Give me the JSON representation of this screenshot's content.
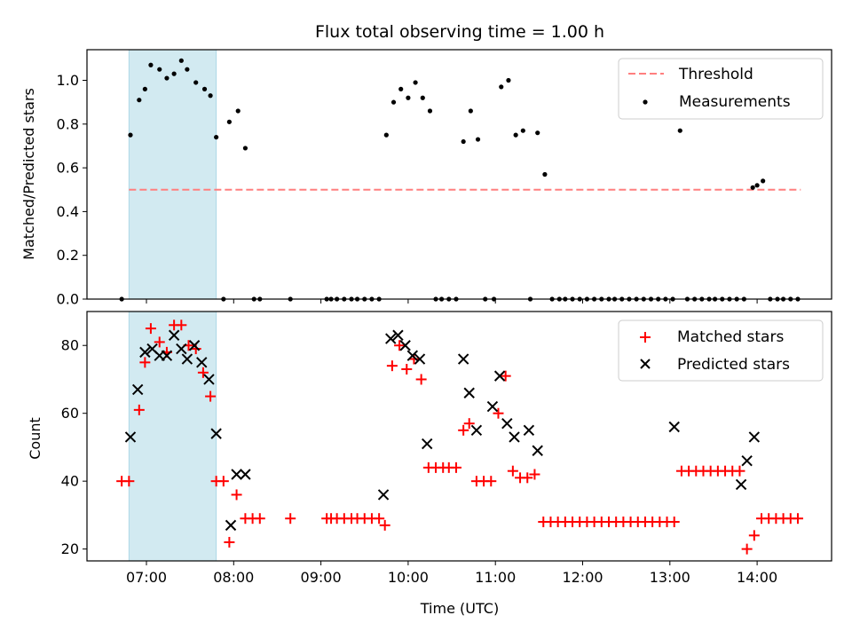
{
  "chart_data": [
    {
      "type": "scatter",
      "title": "Flux total observing time = 1.00 h",
      "xlabel": "",
      "ylabel": "Matched/Predicted stars",
      "ylim": [
        0,
        1.14
      ],
      "yticks": [
        0.0,
        0.2,
        0.4,
        0.6,
        0.8,
        1.0
      ],
      "ytick_labels": [
        "0.0",
        "0.2",
        "0.4",
        "0.6",
        "0.8",
        "1.0"
      ],
      "legend_placement": "top-right",
      "legend": [
        "Threshold",
        "Measurements"
      ],
      "highlight_span": {
        "start": "06:48",
        "end": "07:48",
        "color": "#add8e6"
      },
      "threshold": {
        "name": "Threshold",
        "value": 0.5,
        "x_start": "06:48",
        "x_end": "14:30",
        "color": "#ff7f7f"
      },
      "series": [
        {
          "name": "Measurements",
          "color": "#000000",
          "points": [
            [
              "06:43",
              0
            ],
            [
              "06:49",
              0.75
            ],
            [
              "06:55",
              0.91
            ],
            [
              "06:59",
              0.96
            ],
            [
              "07:03",
              1.07
            ],
            [
              "07:09",
              1.05
            ],
            [
              "07:14",
              1.01
            ],
            [
              "07:19",
              1.03
            ],
            [
              "07:24",
              1.09
            ],
            [
              "07:28",
              1.05
            ],
            [
              "07:34",
              0.99
            ],
            [
              "07:40",
              0.96
            ],
            [
              "07:44",
              0.93
            ],
            [
              "07:48",
              0.74
            ],
            [
              "07:53",
              0
            ],
            [
              "07:57",
              0.81
            ],
            [
              "08:03",
              0.86
            ],
            [
              "08:08",
              0.69
            ],
            [
              "08:14",
              0
            ],
            [
              "08:18",
              0
            ],
            [
              "08:39",
              0
            ],
            [
              "09:04",
              0
            ],
            [
              "09:07",
              0
            ],
            [
              "09:11",
              0
            ],
            [
              "09:16",
              0
            ],
            [
              "09:21",
              0
            ],
            [
              "09:25",
              0
            ],
            [
              "09:30",
              0
            ],
            [
              "09:35",
              0
            ],
            [
              "09:40",
              0
            ],
            [
              "09:45",
              0.75
            ],
            [
              "09:50",
              0.9
            ],
            [
              "09:55",
              0.96
            ],
            [
              "10:00",
              0.92
            ],
            [
              "10:05",
              0.99
            ],
            [
              "10:10",
              0.92
            ],
            [
              "10:15",
              0.86
            ],
            [
              "10:19",
              0
            ],
            [
              "10:23",
              0
            ],
            [
              "10:28",
              0
            ],
            [
              "10:33",
              0
            ],
            [
              "10:38",
              0.72
            ],
            [
              "10:43",
              0.86
            ],
            [
              "10:48",
              0.73
            ],
            [
              "10:53",
              0
            ],
            [
              "10:59",
              0
            ],
            [
              "11:04",
              0.97
            ],
            [
              "11:09",
              1.0
            ],
            [
              "11:14",
              0.75
            ],
            [
              "11:19",
              0.77
            ],
            [
              "11:24",
              0
            ],
            [
              "11:29",
              0.76
            ],
            [
              "11:34",
              0.57
            ],
            [
              "11:39",
              0
            ],
            [
              "11:44",
              0
            ],
            [
              "11:48",
              0
            ],
            [
              "11:53",
              0
            ],
            [
              "11:58",
              0
            ],
            [
              "12:03",
              0
            ],
            [
              "12:08",
              0
            ],
            [
              "12:13",
              0
            ],
            [
              "12:18",
              0
            ],
            [
              "12:22",
              0
            ],
            [
              "12:27",
              0
            ],
            [
              "12:32",
              0
            ],
            [
              "12:37",
              0
            ],
            [
              "12:42",
              0
            ],
            [
              "12:47",
              0
            ],
            [
              "12:52",
              0
            ],
            [
              "12:57",
              0
            ],
            [
              "13:02",
              0
            ],
            [
              "13:07",
              0.77
            ],
            [
              "13:12",
              0
            ],
            [
              "13:17",
              0
            ],
            [
              "13:22",
              0
            ],
            [
              "13:27",
              0
            ],
            [
              "13:31",
              0
            ],
            [
              "13:36",
              0
            ],
            [
              "13:41",
              0
            ],
            [
              "13:46",
              0
            ],
            [
              "13:51",
              0
            ],
            [
              "13:57",
              0.51
            ],
            [
              "14:00",
              0.52
            ],
            [
              "14:04",
              0.54
            ],
            [
              "14:09",
              0
            ],
            [
              "14:14",
              0
            ],
            [
              "14:18",
              0
            ],
            [
              "14:23",
              0
            ],
            [
              "14:28",
              0
            ]
          ]
        }
      ]
    },
    {
      "type": "scatter",
      "title": "",
      "xlabel": "Time (UTC)",
      "ylabel": "Count",
      "ylim": [
        16.5,
        90
      ],
      "yticks": [
        20,
        40,
        60,
        80
      ],
      "ytick_labels": [
        "20",
        "40",
        "60",
        "80"
      ],
      "xticks": [
        "07:00",
        "08:00",
        "09:00",
        "10:00",
        "11:00",
        "12:00",
        "13:00",
        "14:00"
      ],
      "legend_placement": "top-right",
      "legend": [
        "Matched stars",
        "Predicted stars"
      ],
      "highlight_span": {
        "start": "06:48",
        "end": "07:48",
        "color": "#add8e6"
      },
      "series": [
        {
          "name": "Matched stars",
          "marker": "plus",
          "color": "#ff0000",
          "points": [
            [
              "06:43",
              40
            ],
            [
              "06:48",
              40
            ],
            [
              "06:55",
              61
            ],
            [
              "06:59",
              75
            ],
            [
              "07:03",
              85
            ],
            [
              "07:09",
              81
            ],
            [
              "07:14",
              78
            ],
            [
              "07:19",
              86
            ],
            [
              "07:24",
              86
            ],
            [
              "07:29",
              80
            ],
            [
              "07:34",
              79
            ],
            [
              "07:39",
              72
            ],
            [
              "07:44",
              65
            ],
            [
              "07:48",
              40
            ],
            [
              "07:53",
              40
            ],
            [
              "07:57",
              22
            ],
            [
              "08:02",
              36
            ],
            [
              "08:08",
              29
            ],
            [
              "08:13",
              29
            ],
            [
              "08:18",
              29
            ],
            [
              "08:39",
              29
            ],
            [
              "09:04",
              29
            ],
            [
              "09:07",
              29
            ],
            [
              "09:11",
              29
            ],
            [
              "09:16",
              29
            ],
            [
              "09:21",
              29
            ],
            [
              "09:25",
              29
            ],
            [
              "09:30",
              29
            ],
            [
              "09:35",
              29
            ],
            [
              "09:40",
              29
            ],
            [
              "09:44",
              27
            ],
            [
              "09:49",
              74
            ],
            [
              "09:54",
              80
            ],
            [
              "09:59",
              73
            ],
            [
              "10:04",
              76
            ],
            [
              "10:09",
              70
            ],
            [
              "10:14",
              44
            ],
            [
              "10:19",
              44
            ],
            [
              "10:24",
              44
            ],
            [
              "10:28",
              44
            ],
            [
              "10:33",
              44
            ],
            [
              "10:38",
              55
            ],
            [
              "10:42",
              57
            ],
            [
              "10:47",
              40
            ],
            [
              "10:52",
              40
            ],
            [
              "10:57",
              40
            ],
            [
              "11:02",
              60
            ],
            [
              "11:07",
              71
            ],
            [
              "11:12",
              43
            ],
            [
              "11:17",
              41
            ],
            [
              "11:22",
              41
            ],
            [
              "11:27",
              42
            ],
            [
              "11:33",
              28
            ],
            [
              "11:38",
              28
            ],
            [
              "11:43",
              28
            ],
            [
              "11:48",
              28
            ],
            [
              "11:53",
              28
            ],
            [
              "11:58",
              28
            ],
            [
              "12:03",
              28
            ],
            [
              "12:08",
              28
            ],
            [
              "12:13",
              28
            ],
            [
              "12:18",
              28
            ],
            [
              "12:23",
              28
            ],
            [
              "12:28",
              28
            ],
            [
              "12:33",
              28
            ],
            [
              "12:38",
              28
            ],
            [
              "12:43",
              28
            ],
            [
              "12:48",
              28
            ],
            [
              "12:53",
              28
            ],
            [
              "12:58",
              28
            ],
            [
              "13:03",
              28
            ],
            [
              "13:08",
              43
            ],
            [
              "13:13",
              43
            ],
            [
              "13:18",
              43
            ],
            [
              "13:23",
              43
            ],
            [
              "13:28",
              43
            ],
            [
              "13:33",
              43
            ],
            [
              "13:38",
              43
            ],
            [
              "13:43",
              43
            ],
            [
              "13:48",
              43
            ],
            [
              "13:53",
              20
            ],
            [
              "13:58",
              24
            ],
            [
              "14:03",
              29
            ],
            [
              "14:08",
              29
            ],
            [
              "14:13",
              29
            ],
            [
              "14:18",
              29
            ],
            [
              "14:23",
              29
            ],
            [
              "14:28",
              29
            ]
          ]
        },
        {
          "name": "Predicted stars",
          "marker": "x",
          "color": "#000000",
          "points": [
            [
              "06:49",
              53
            ],
            [
              "06:54",
              67
            ],
            [
              "06:59",
              78
            ],
            [
              "07:04",
              79
            ],
            [
              "07:09",
              77
            ],
            [
              "07:14",
              77
            ],
            [
              "07:19",
              83
            ],
            [
              "07:24",
              79
            ],
            [
              "07:28",
              76
            ],
            [
              "07:33",
              80
            ],
            [
              "07:38",
              75
            ],
            [
              "07:43",
              70
            ],
            [
              "07:48",
              54
            ],
            [
              "07:58",
              27
            ],
            [
              "08:02",
              42
            ],
            [
              "08:08",
              42
            ],
            [
              "09:43",
              36
            ],
            [
              "09:48",
              82
            ],
            [
              "09:53",
              83
            ],
            [
              "09:58",
              80
            ],
            [
              "10:03",
              77
            ],
            [
              "10:08",
              76
            ],
            [
              "10:13",
              51
            ],
            [
              "10:38",
              76
            ],
            [
              "10:42",
              66
            ],
            [
              "10:47",
              55
            ],
            [
              "10:58",
              62
            ],
            [
              "11:03",
              71
            ],
            [
              "11:08",
              57
            ],
            [
              "11:13",
              53
            ],
            [
              "11:23",
              55
            ],
            [
              "11:29",
              49
            ],
            [
              "13:03",
              56
            ],
            [
              "13:49",
              39
            ],
            [
              "13:53",
              46
            ],
            [
              "13:58",
              53
            ]
          ]
        }
      ]
    }
  ]
}
